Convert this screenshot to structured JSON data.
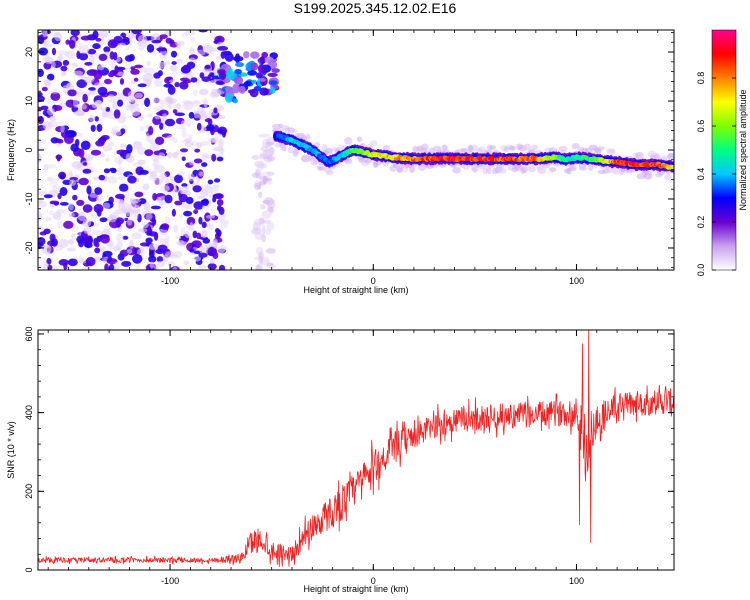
{
  "title": "S199.2025.345.12.02.E16",
  "chart_data": [
    {
      "type": "heatmap",
      "xlabel": "Height of straight line (km)",
      "ylabel": "Frequency (Hz)",
      "xlim": [
        -165,
        148
      ],
      "ylim": [
        -24.5,
        24.5
      ],
      "xticks": [
        -100,
        0,
        100
      ],
      "xtick_labels": [
        "-100",
        "0",
        "100"
      ],
      "yticks": [
        -20,
        -10,
        0,
        10,
        20
      ],
      "ytick_labels": [
        "-20",
        "-10",
        "0",
        "10",
        "20"
      ],
      "colorbar": {
        "label": "Normalized spectral amplitude",
        "range": [
          0,
          1
        ],
        "ticks": [
          0.0,
          0.2,
          0.4,
          0.6,
          0.8
        ],
        "tick_labels": [
          "0.0",
          "0.2",
          "0.4",
          "0.6",
          "0.8"
        ],
        "colormap": [
          "#ffffff",
          "#c8a0f0",
          "#6a00d0",
          "#0000ff",
          "#00c8ff",
          "#00ff80",
          "#80ff00",
          "#ffff00",
          "#ff8000",
          "#ff0000",
          "#ff0090"
        ]
      },
      "noise_region": {
        "x_range": [
          -165,
          -73
        ],
        "freq_range": [
          -24.5,
          24.5
        ],
        "amplitude": 0.15
      },
      "noise_strip": {
        "x_range": [
          -58,
          -50
        ],
        "freq_range": [
          -24.5,
          3
        ],
        "amplitude": 0.1
      },
      "early_cluster": {
        "x_range": [
          -75,
          -48
        ],
        "freq_range": [
          10,
          20
        ],
        "amplitude": 0.3
      },
      "ridge": {
        "x": [
          -48,
          -40,
          -30,
          -22,
          -15,
          -10,
          -5,
          0,
          10,
          20,
          40,
          60,
          80,
          90,
          95,
          100,
          110,
          120,
          130,
          140,
          148
        ],
        "freq": [
          3,
          2,
          0,
          -2.5,
          -1,
          0,
          -0.5,
          -1,
          -1.5,
          -1.8,
          -1.8,
          -1.8,
          -1.8,
          -1.5,
          -2,
          -1.5,
          -2,
          -2.5,
          -3,
          -3,
          -3.5
        ],
        "amplitude": [
          0.3,
          0.45,
          0.4,
          0.35,
          0.45,
          0.55,
          0.6,
          0.7,
          0.8,
          0.85,
          0.95,
          0.9,
          0.85,
          0.6,
          0.5,
          0.5,
          0.6,
          0.9,
          0.95,
          0.9,
          0.7
        ]
      }
    },
    {
      "type": "line",
      "xlabel": "Height of straight line (km)",
      "ylabel": "SNR (10 * v/v)",
      "xlim": [
        -165,
        148
      ],
      "ylim": [
        0,
        610
      ],
      "xticks": [
        -100,
        0,
        100
      ],
      "xtick_labels": [
        "-100",
        "0",
        "100"
      ],
      "yticks": [
        0,
        200,
        400,
        600
      ],
      "ytick_labels": [
        "0",
        "200",
        "400",
        "600"
      ],
      "series": [
        {
          "name": "SNR",
          "color": "#ee2222",
          "trend_x": [
            -165,
            -80,
            -65,
            -60,
            -55,
            -50,
            -40,
            -30,
            -20,
            -10,
            0,
            10,
            20,
            30,
            40,
            60,
            80,
            100,
            105,
            110,
            120,
            148
          ],
          "trend_y": [
            25,
            25,
            30,
            70,
            80,
            50,
            40,
            110,
            150,
            200,
            260,
            310,
            340,
            365,
            380,
            390,
            395,
            400,
            300,
            380,
            420,
            430
          ],
          "spread": [
            8,
            8,
            15,
            40,
            40,
            30,
            25,
            45,
            55,
            55,
            55,
            50,
            40,
            40,
            40,
            40,
            40,
            40,
            120,
            60,
            40,
            40
          ],
          "spikes": [
            {
              "x": 101.5,
              "y": 115
            },
            {
              "x": 103,
              "y": 575
            },
            {
              "x": 106,
              "y": 610
            },
            {
              "x": 107,
              "y": 70
            }
          ]
        }
      ]
    }
  ]
}
